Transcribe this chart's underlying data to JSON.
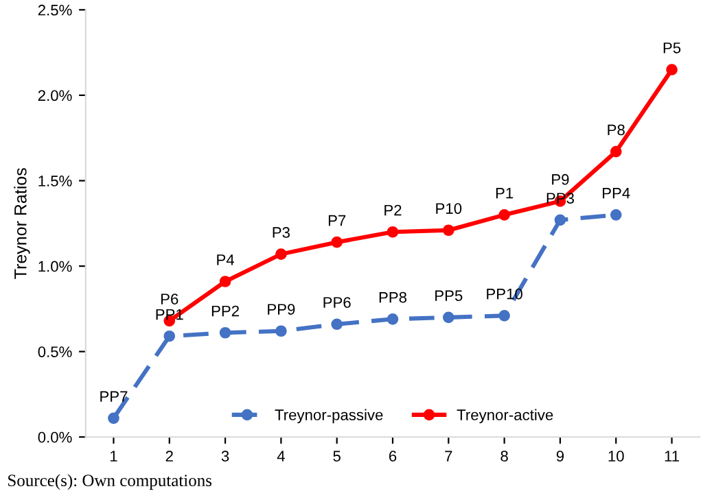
{
  "chart_data": {
    "type": "line",
    "ylabel": "Treynor Ratios",
    "categories": [
      "1",
      "2",
      "3",
      "4",
      "5",
      "6",
      "7",
      "8",
      "9",
      "10",
      "11"
    ],
    "series": [
      {
        "name": "Treynor-passive",
        "color": "#4472c4",
        "line_style": "dashed",
        "values": [
          0.11,
          0.59,
          0.61,
          0.62,
          0.66,
          0.69,
          0.7,
          0.71,
          1.27,
          1.3,
          null
        ]
      },
      {
        "name": "Treynor-active",
        "color": "#ff0000",
        "line_style": "solid",
        "values": [
          null,
          0.68,
          0.91,
          1.07,
          1.14,
          1.2,
          1.21,
          1.3,
          1.38,
          1.67,
          2.15
        ]
      }
    ],
    "marker": "circle",
    "ylim": [
      0,
      2.5
    ],
    "yticks": [
      {
        "value": 0,
        "label": "0.0%"
      },
      {
        "value": 0.5,
        "label": "0.5%"
      },
      {
        "value": 1.0,
        "label": "1.0%"
      },
      {
        "value": 1.5,
        "label": "1.5%"
      },
      {
        "value": 2.0,
        "label": "2.0%"
      },
      {
        "value": 2.5,
        "label": "2.5%"
      }
    ],
    "grid": false,
    "legend": "bottom",
    "annotations": [
      {
        "text": "PP7",
        "x": "1",
        "y": 0.11
      },
      {
        "text": "PP1",
        "x": "2",
        "y": 0.59
      },
      {
        "text": "PP2",
        "x": "3",
        "y": 0.61
      },
      {
        "text": "PP9",
        "x": "4",
        "y": 0.62
      },
      {
        "text": "PP6",
        "x": "5",
        "y": 0.66
      },
      {
        "text": "PP8",
        "x": "6",
        "y": 0.69
      },
      {
        "text": "PP5",
        "x": "7",
        "y": 0.7
      },
      {
        "text": "PP10",
        "x": "8",
        "y": 0.71
      },
      {
        "text": "PP3",
        "x": "9",
        "y": 1.27
      },
      {
        "text": "PP4",
        "x": "10",
        "y": 1.3
      },
      {
        "text": "P6",
        "x": "2",
        "y": 0.68
      },
      {
        "text": "P4",
        "x": "3",
        "y": 0.91
      },
      {
        "text": "P3",
        "x": "4",
        "y": 1.07
      },
      {
        "text": "P7",
        "x": "5",
        "y": 1.14
      },
      {
        "text": "P2",
        "x": "6",
        "y": 1.2
      },
      {
        "text": "P10",
        "x": "7",
        "y": 1.21
      },
      {
        "text": "P1",
        "x": "8",
        "y": 1.3
      },
      {
        "text": "P9",
        "x": "9",
        "y": 1.38
      },
      {
        "text": "P8",
        "x": "10",
        "y": 1.67
      },
      {
        "text": "P5",
        "x": "11",
        "y": 2.15
      },
      "Source(s): Own computations"
    ]
  }
}
